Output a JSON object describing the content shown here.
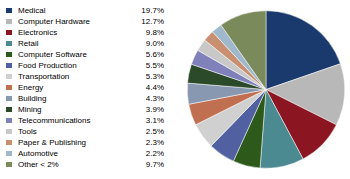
{
  "chart_data": {
    "type": "pie",
    "categories": [
      "Medical",
      "Computer Hardware",
      "Electronics",
      "Retail",
      "Computer Software",
      "Food Production",
      "Transportation",
      "Energy",
      "Building",
      "Mining",
      "Telecommunications",
      "Tools",
      "Paper & Publishing",
      "Automotive",
      "Other < 2%"
    ],
    "values": [
      19.7,
      12.7,
      9.8,
      9.0,
      5.6,
      5.5,
      5.3,
      4.4,
      4.3,
      3.9,
      3.1,
      2.5,
      2.3,
      2.2,
      9.7
    ],
    "value_labels": [
      "19.7%",
      "12.7%",
      "9.8%",
      "9.0%",
      "5.6%",
      "5.5%",
      "5.3%",
      "4.4%",
      "4.3%",
      "3.9%",
      "3.1%",
      "2.5%",
      "2.3%",
      "2.2%",
      "9.7%"
    ],
    "colors": [
      "#1a3a6e",
      "#b8b8b8",
      "#8b1520",
      "#4a8a90",
      "#2d5a1b",
      "#5060a0",
      "#d0d0d0",
      "#c07050",
      "#8898b0",
      "#2a4a2a",
      "#8080bb",
      "#c8c8c8",
      "#c89070",
      "#a0b8cc",
      "#7a8a5a"
    ],
    "legend": "left"
  }
}
